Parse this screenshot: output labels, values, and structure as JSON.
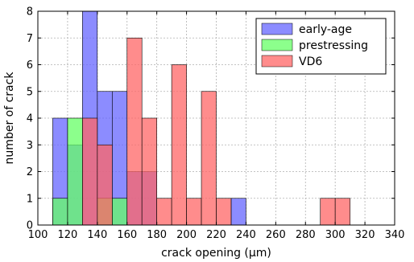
{
  "chart_data": {
    "type": "bar",
    "subtype": "overlaid-histogram",
    "title": "",
    "xlabel": "crack opening (µm)",
    "ylabel": "number of crack",
    "xlim": [
      100,
      340
    ],
    "ylim": [
      0,
      8
    ],
    "xticks": [
      100,
      120,
      140,
      160,
      180,
      200,
      220,
      240,
      260,
      280,
      300,
      320,
      340
    ],
    "yticks": [
      0,
      1,
      2,
      3,
      4,
      5,
      6,
      7,
      8
    ],
    "grid": true,
    "legend_position": "top-right",
    "bin_width": 10,
    "series": [
      {
        "name": "early-age",
        "color": "#6666ff",
        "bins": [
          {
            "start": 110,
            "count": 4
          },
          {
            "start": 120,
            "count": 3
          },
          {
            "start": 130,
            "count": 8
          },
          {
            "start": 140,
            "count": 5
          },
          {
            "start": 150,
            "count": 5
          },
          {
            "start": 160,
            "count": 2
          },
          {
            "start": 170,
            "count": 2
          },
          {
            "start": 230,
            "count": 1
          }
        ]
      },
      {
        "name": "prestressing",
        "color": "#66ff66",
        "bins": [
          {
            "start": 110,
            "count": 1
          },
          {
            "start": 120,
            "count": 4
          },
          {
            "start": 140,
            "count": 1
          },
          {
            "start": 150,
            "count": 1
          }
        ]
      },
      {
        "name": "VD6",
        "color": "#ff6666",
        "bins": [
          {
            "start": 130,
            "count": 4
          },
          {
            "start": 140,
            "count": 3
          },
          {
            "start": 160,
            "count": 7
          },
          {
            "start": 170,
            "count": 4
          },
          {
            "start": 180,
            "count": 1
          },
          {
            "start": 190,
            "count": 6
          },
          {
            "start": 200,
            "count": 1
          },
          {
            "start": 210,
            "count": 5
          },
          {
            "start": 220,
            "count": 1
          },
          {
            "start": 290,
            "count": 1
          },
          {
            "start": 300,
            "count": 1
          }
        ]
      }
    ]
  }
}
